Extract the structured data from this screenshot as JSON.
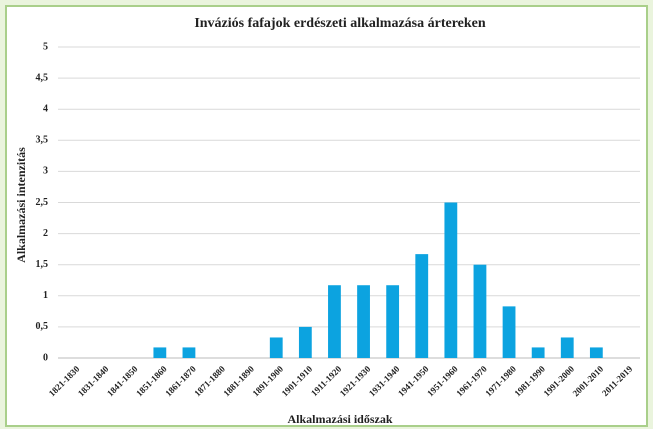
{
  "chart_data": {
    "type": "bar",
    "title": "Inváziós fafajok erdészeti alkalmazása ártereken",
    "x_label": "Alkalmazási időszak",
    "y_label": "Alkalmazási intenzitás",
    "categories": [
      "1821-1830",
      "1831-1840",
      "1841-1850",
      "1851-1860",
      "1861-1870",
      "1871-1880",
      "1881-1890",
      "1891-1900",
      "1901-1910",
      "1911-1920",
      "1921-1930",
      "1931-1940",
      "1941-1950",
      "1951-1960",
      "1961-1970",
      "1971-1980",
      "1981-1990",
      "1991-2000",
      "2001-2010",
      "2011-2019"
    ],
    "values": [
      0,
      0,
      0,
      0.17,
      0.17,
      0,
      0,
      0.33,
      0.5,
      1.17,
      1.17,
      1.17,
      1.67,
      2.5,
      1.5,
      0.83,
      0.17,
      0.33,
      0.17,
      0
    ],
    "color": "#0ca3e0",
    "ylim": [
      0,
      5
    ],
    "yticks": [
      0,
      {
        "value": 0.5,
        "label": "0,5"
      },
      1,
      {
        "value": 1.5,
        "label": "1,5"
      },
      2,
      {
        "value": 2.5,
        "label": "2,5"
      },
      3,
      {
        "value": 3.5,
        "label": "3,5"
      },
      4,
      {
        "value": 4.5,
        "label": "4,5"
      },
      5
    ],
    "grid": true
  }
}
